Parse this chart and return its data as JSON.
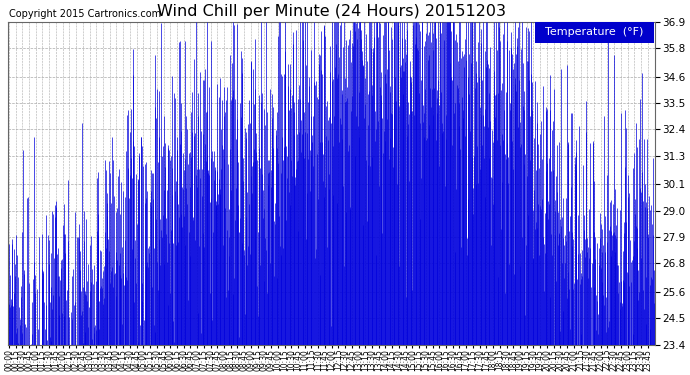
{
  "title": "Wind Chill per Minute (24 Hours) 20151203",
  "copyright_text": "Copyright 2015 Cartronics.com",
  "legend_label": "Temperature  (°F)",
  "y_min": 23.4,
  "y_max": 36.9,
  "y_ticks": [
    23.4,
    24.5,
    25.6,
    26.8,
    27.9,
    29.0,
    30.1,
    31.3,
    32.4,
    33.5,
    34.6,
    35.8,
    36.9
  ],
  "bar_color": "#0000dd",
  "background_color": "#ffffff",
  "grid_color": "#aaaaaa",
  "title_fontsize": 11.5,
  "copyright_fontsize": 7,
  "legend_bg_color": "#0000cc",
  "legend_text_color": "#ffffff",
  "legend_fontsize": 8,
  "x_tick_interval_minutes": 15,
  "total_minutes": 1440,
  "seed": 99,
  "trend_base": 25.5,
  "trend_peak": 35.5,
  "noise_scale": 2.8,
  "spike_prob": 0.12,
  "spike_mag": 5.0
}
